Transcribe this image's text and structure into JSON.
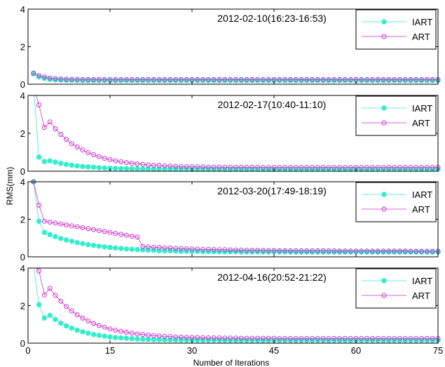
{
  "figure": {
    "ylabel": "RMS(mm)",
    "xlabel": "Number of Iterations",
    "colors": {
      "iart": "#33eecc",
      "art": "#cc33cc",
      "axis": "#000000"
    }
  },
  "chart_data": [
    {
      "type": "line",
      "title": "2012-02-10(16:23-16:53)",
      "xlim": [
        0,
        75
      ],
      "ylim": [
        0,
        4
      ],
      "yticks": [
        0,
        2,
        4
      ],
      "xticks": [
        0,
        15,
        30,
        45,
        60,
        75
      ],
      "legend": "top-right",
      "series": [
        {
          "name": "IART",
          "marker": "filled-circle",
          "start": 0.55,
          "end": 0.2,
          "decay": 0.6,
          "values": []
        },
        {
          "name": "ART",
          "marker": "open-circle",
          "start": 0.6,
          "end": 0.25,
          "decay": 0.5,
          "values": []
        }
      ]
    },
    {
      "type": "line",
      "title": "2012-02-17(10:40-11:10)",
      "xlim": [
        0,
        75
      ],
      "ylim": [
        0,
        4
      ],
      "yticks": [
        0,
        2,
        4
      ],
      "xticks": [
        0,
        15,
        30,
        45,
        60,
        75
      ],
      "legend": "top-right",
      "series": [
        {
          "name": "IART",
          "marker": "filled-circle",
          "start": 4.5,
          "second": 0.75,
          "end": 0.1,
          "decay": 0.18,
          "values": []
        },
        {
          "name": "ART",
          "marker": "open-circle",
          "start": 4.5,
          "second": 3.5,
          "end": 0.2,
          "decay": 0.16,
          "values": []
        }
      ]
    },
    {
      "type": "line",
      "title": "2012-03-20(17:49-18:19)",
      "xlim": [
        0,
        75
      ],
      "ylim": [
        0,
        4
      ],
      "yticks": [
        0,
        2,
        4
      ],
      "xticks": [
        0,
        15,
        30,
        45,
        60,
        75
      ],
      "legend": "top-right",
      "series": [
        {
          "name": "IART",
          "marker": "filled-circle",
          "start": 4.0,
          "second": 1.9,
          "end": 0.25,
          "decay": 0.12,
          "values": []
        },
        {
          "name": "ART",
          "marker": "open-circle",
          "start": 4.0,
          "second": 2.75,
          "end": 0.3,
          "decay": 0.1,
          "values": []
        }
      ]
    },
    {
      "type": "line",
      "title": "2012-04-16(20:52-21:22)",
      "xlim": [
        0,
        75
      ],
      "ylim": [
        0,
        4
      ],
      "yticks": [
        0,
        2,
        4
      ],
      "xticks": [
        0,
        15,
        30,
        45,
        60,
        75
      ],
      "legend": "top-right",
      "series": [
        {
          "name": "IART",
          "marker": "filled-circle",
          "start": 4.2,
          "second": 2.05,
          "end": 0.15,
          "decay": 0.18,
          "values": []
        },
        {
          "name": "ART",
          "marker": "open-circle",
          "start": 4.2,
          "second": 3.85,
          "end": 0.25,
          "decay": 0.15,
          "values": []
        }
      ]
    }
  ]
}
